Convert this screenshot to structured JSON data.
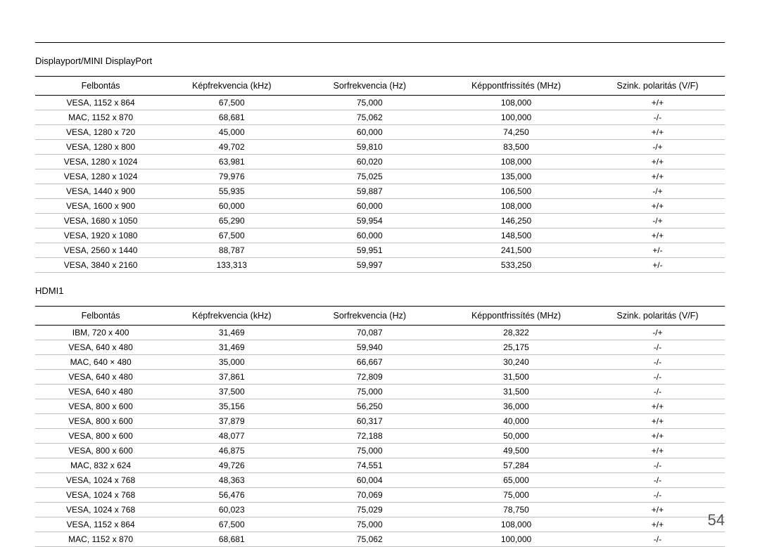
{
  "page_number": "54",
  "sections": [
    {
      "title": "Displayport/MINI DisplayPort",
      "columns": [
        "Felbontás",
        "Képfrekvencia (kHz)",
        "Sorfrekvencia (Hz)",
        "Képpontfrissítés (MHz)",
        "Szink. polaritás (V/F)"
      ],
      "rows": [
        [
          "VESA, 1152 x 864",
          "67,500",
          "75,000",
          "108,000",
          "+/+"
        ],
        [
          "MAC, 1152 x 870",
          "68,681",
          "75,062",
          "100,000",
          "-/-"
        ],
        [
          "VESA, 1280 x 720",
          "45,000",
          "60,000",
          "74,250",
          "+/+"
        ],
        [
          "VESA, 1280 x 800",
          "49,702",
          "59,810",
          "83,500",
          "-/+"
        ],
        [
          "VESA, 1280 x 1024",
          "63,981",
          "60,020",
          "108,000",
          "+/+"
        ],
        [
          "VESA, 1280 x 1024",
          "79,976",
          "75,025",
          "135,000",
          "+/+"
        ],
        [
          "VESA, 1440 x 900",
          "55,935",
          "59,887",
          "106,500",
          "-/+"
        ],
        [
          "VESA, 1600 x 900",
          "60,000",
          "60,000",
          "108,000",
          "+/+"
        ],
        [
          "VESA, 1680 x 1050",
          "65,290",
          "59,954",
          "146,250",
          "-/+"
        ],
        [
          "VESA, 1920 x 1080",
          "67,500",
          "60,000",
          "148,500",
          "+/+"
        ],
        [
          "VESA, 2560 x 1440",
          "88,787",
          "59,951",
          "241,500",
          "+/-"
        ],
        [
          "VESA, 3840 x 2160",
          "133,313",
          "59,997",
          "533,250",
          "+/-"
        ]
      ]
    },
    {
      "title": "HDMI1",
      "columns": [
        "Felbontás",
        "Képfrekvencia (kHz)",
        "Sorfrekvencia (Hz)",
        "Képpontfrissítés (MHz)",
        "Szink. polaritás (V/F)"
      ],
      "rows": [
        [
          "IBM, 720 x 400",
          "31,469",
          "70,087",
          "28,322",
          "-/+"
        ],
        [
          "VESA, 640 x 480",
          "31,469",
          "59,940",
          "25,175",
          "-/-"
        ],
        [
          "MAC, 640 × 480",
          "35,000",
          "66,667",
          "30,240",
          "-/-"
        ],
        [
          "VESA, 640 x 480",
          "37,861",
          "72,809",
          "31,500",
          "-/-"
        ],
        [
          "VESA, 640 x 480",
          "37,500",
          "75,000",
          "31,500",
          "-/-"
        ],
        [
          "VESA, 800 x 600",
          "35,156",
          "56,250",
          "36,000",
          "+/+"
        ],
        [
          "VESA, 800 x 600",
          "37,879",
          "60,317",
          "40,000",
          "+/+"
        ],
        [
          "VESA, 800 x 600",
          "48,077",
          "72,188",
          "50,000",
          "+/+"
        ],
        [
          "VESA, 800 x 600",
          "46,875",
          "75,000",
          "49,500",
          "+/+"
        ],
        [
          "MAC, 832 x 624",
          "49,726",
          "74,551",
          "57,284",
          "-/-"
        ],
        [
          "VESA, 1024 x 768",
          "48,363",
          "60,004",
          "65,000",
          "-/-"
        ],
        [
          "VESA, 1024 x 768",
          "56,476",
          "70,069",
          "75,000",
          "-/-"
        ],
        [
          "VESA, 1024 x 768",
          "60,023",
          "75,029",
          "78,750",
          "+/+"
        ],
        [
          "VESA, 1152 x 864",
          "67,500",
          "75,000",
          "108,000",
          "+/+"
        ],
        [
          "MAC, 1152 x 870",
          "68,681",
          "75,062",
          "100,000",
          "-/-"
        ]
      ]
    }
  ]
}
